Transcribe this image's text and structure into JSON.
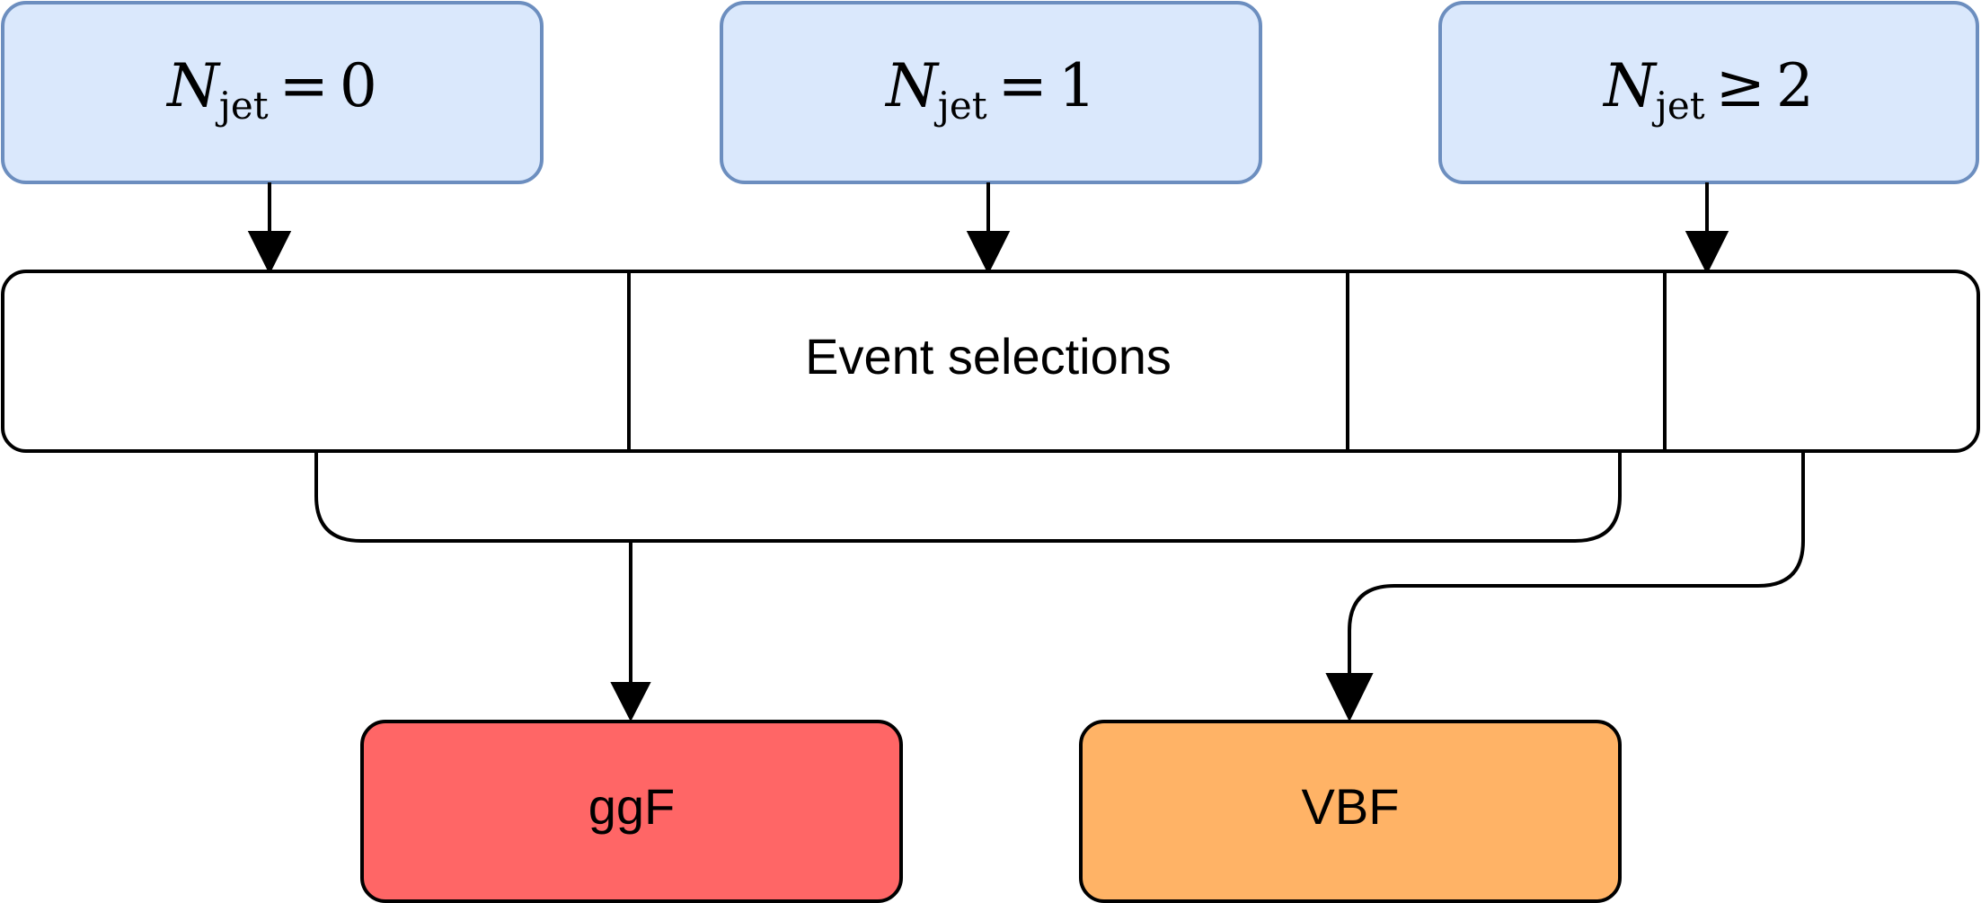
{
  "diagram": {
    "inputs": [
      {
        "symbol": "N",
        "subscript": "jet",
        "relation": "=",
        "value": "0"
      },
      {
        "symbol": "N",
        "subscript": "jet",
        "relation": "=",
        "value": "1"
      },
      {
        "symbol": "N",
        "subscript": "jet",
        "relation": "≥",
        "value": "2"
      }
    ],
    "selection_label": "Event selections",
    "outputs": [
      {
        "label": "ggF",
        "fill": "#FF6666"
      },
      {
        "label": "VBF",
        "fill": "#FFB366"
      }
    ],
    "colors": {
      "input_fill": "#DAE8FC",
      "input_stroke": "#6C8EBF",
      "line": "#000000"
    }
  }
}
